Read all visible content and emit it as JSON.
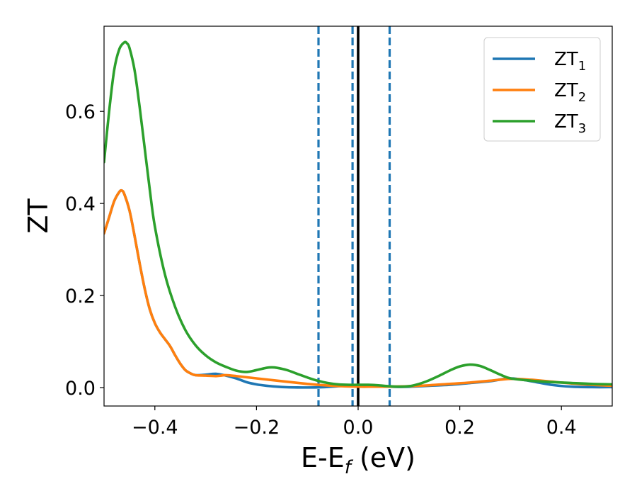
{
  "chart_data": {
    "type": "line",
    "xlabel": "E-E",
    "xlabel_subscript": "f",
    "xlabel_unit": " (eV)",
    "ylabel": "ZT",
    "xlim": [
      -0.5,
      0.5
    ],
    "ylim": [
      -0.04,
      0.785
    ],
    "xticks": [
      -0.4,
      -0.2,
      0.0,
      0.2,
      0.4
    ],
    "xtick_labels": [
      "−0.4",
      "−0.2",
      "0.0",
      "0.2",
      "0.4"
    ],
    "yticks": [
      0.0,
      0.2,
      0.4,
      0.6
    ],
    "ytick_labels": [
      "0.0",
      "0.2",
      "0.4",
      "0.6"
    ],
    "grid": false,
    "legend_position": "top-right",
    "vlines": [
      {
        "x": -0.078,
        "style": "dashed",
        "color": "#1f77b4"
      },
      {
        "x": -0.011,
        "style": "dashed",
        "color": "#1f77b4"
      },
      {
        "x": 0.062,
        "style": "dashed",
        "color": "#1f77b4"
      },
      {
        "x": 0.0,
        "style": "solid",
        "color": "#000000"
      }
    ],
    "series": [
      {
        "name": "ZT",
        "name_subscript": "1",
        "color": "#1f77b4",
        "x": [
          -0.5,
          -0.49,
          -0.48,
          -0.47,
          -0.465,
          -0.46,
          -0.45,
          -0.44,
          -0.43,
          -0.42,
          -0.41,
          -0.4,
          -0.39,
          -0.38,
          -0.37,
          -0.36,
          -0.35,
          -0.34,
          -0.33,
          -0.32,
          -0.3,
          -0.28,
          -0.26,
          -0.24,
          -0.22,
          -0.2,
          -0.18,
          -0.16,
          -0.14,
          -0.12,
          -0.1,
          -0.08,
          -0.06,
          -0.04,
          -0.02,
          0.0,
          0.02,
          0.04,
          0.06,
          0.08,
          0.1,
          0.14,
          0.18,
          0.22,
          0.26,
          0.3,
          0.34,
          0.38,
          0.42,
          0.46,
          0.5
        ],
        "y": [
          0.335,
          0.37,
          0.405,
          0.425,
          0.428,
          0.42,
          0.385,
          0.33,
          0.27,
          0.215,
          0.17,
          0.14,
          0.12,
          0.105,
          0.09,
          0.07,
          0.052,
          0.038,
          0.031,
          0.027,
          0.028,
          0.03,
          0.026,
          0.02,
          0.012,
          0.007,
          0.004,
          0.002,
          0.0008,
          0.0003,
          0.0002,
          0.0005,
          0.0015,
          0.003,
          0.004,
          0.005,
          0.004,
          0.003,
          0.002,
          0.0015,
          0.0018,
          0.004,
          0.006,
          0.01,
          0.014,
          0.02,
          0.014,
          0.006,
          0.002,
          0.001,
          0.001
        ]
      },
      {
        "name": "ZT",
        "name_subscript": "2",
        "color": "#ff7f0e",
        "x": [
          -0.5,
          -0.49,
          -0.48,
          -0.47,
          -0.465,
          -0.46,
          -0.45,
          -0.44,
          -0.43,
          -0.42,
          -0.41,
          -0.4,
          -0.39,
          -0.38,
          -0.37,
          -0.36,
          -0.35,
          -0.34,
          -0.33,
          -0.32,
          -0.3,
          -0.28,
          -0.27,
          -0.26,
          -0.24,
          -0.2,
          -0.1,
          -0.05,
          0.0,
          0.03,
          0.06,
          0.1,
          0.14,
          0.18,
          0.22,
          0.26,
          0.3,
          0.34,
          0.38,
          0.42,
          0.46,
          0.5
        ],
        "y": [
          0.335,
          0.37,
          0.405,
          0.425,
          0.428,
          0.42,
          0.385,
          0.33,
          0.27,
          0.215,
          0.17,
          0.14,
          0.12,
          0.105,
          0.09,
          0.07,
          0.052,
          0.038,
          0.031,
          0.027,
          0.026,
          0.025,
          0.026,
          0.027,
          0.025,
          0.02,
          0.008,
          0.004,
          0.002,
          0.002,
          0.002,
          0.003,
          0.005,
          0.008,
          0.011,
          0.015,
          0.019,
          0.017,
          0.013,
          0.009,
          0.006,
          0.004
        ]
      },
      {
        "name": "ZT",
        "name_subscript": "3",
        "color": "#2ca02c",
        "x": [
          -0.5,
          -0.49,
          -0.48,
          -0.47,
          -0.46,
          -0.455,
          -0.45,
          -0.44,
          -0.43,
          -0.42,
          -0.41,
          -0.4,
          -0.38,
          -0.36,
          -0.34,
          -0.32,
          -0.3,
          -0.28,
          -0.26,
          -0.24,
          -0.22,
          -0.2,
          -0.18,
          -0.17,
          -0.16,
          -0.14,
          -0.12,
          -0.1,
          -0.08,
          -0.06,
          -0.04,
          -0.02,
          0.0,
          0.02,
          0.04,
          0.06,
          0.08,
          0.1,
          0.12,
          0.14,
          0.16,
          0.18,
          0.2,
          0.22,
          0.24,
          0.26,
          0.28,
          0.3,
          0.34,
          0.38,
          0.42,
          0.46,
          0.5
        ],
        "y": [
          0.49,
          0.6,
          0.69,
          0.735,
          0.75,
          0.748,
          0.738,
          0.69,
          0.61,
          0.52,
          0.43,
          0.35,
          0.245,
          0.175,
          0.125,
          0.092,
          0.07,
          0.055,
          0.045,
          0.037,
          0.034,
          0.038,
          0.043,
          0.044,
          0.043,
          0.038,
          0.03,
          0.022,
          0.015,
          0.01,
          0.007,
          0.006,
          0.006,
          0.006,
          0.005,
          0.003,
          0.002,
          0.003,
          0.008,
          0.016,
          0.026,
          0.037,
          0.046,
          0.05,
          0.047,
          0.038,
          0.028,
          0.02,
          0.015,
          0.012,
          0.01,
          0.008,
          0.007
        ]
      }
    ]
  }
}
